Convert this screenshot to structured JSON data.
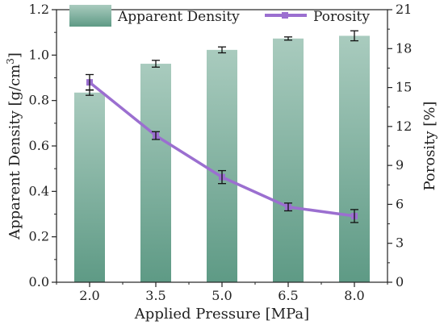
{
  "chart_data": {
    "type": "bar",
    "xlabel": "Applied Pressure [MPa]",
    "ylabel_left": "Apparent Density [g/cm³]",
    "ylabel_left_base": "Apparent Density [g/cm",
    "ylabel_left_sup": "3",
    "ylabel_left_close": "]",
    "ylabel_right": "Porosity [%]",
    "categories": [
      "2.0",
      "3.5",
      "5.0",
      "6.5",
      "8.0"
    ],
    "ylim_left": [
      0,
      1.2
    ],
    "yticks_left": [
      "0.0",
      "0.2",
      "0.4",
      "0.6",
      "0.8",
      "1.0",
      "1.2"
    ],
    "ylim_right": [
      0,
      21
    ],
    "yticks_right": [
      "0",
      "3",
      "6",
      "9",
      "12",
      "15",
      "18",
      "21"
    ],
    "series": [
      {
        "name": "Apparent Density",
        "type": "bar",
        "axis": "left",
        "color_top": "#a9cbbe",
        "color_bottom": "#5e9a85",
        "values": [
          0.835,
          0.962,
          1.023,
          1.073,
          1.085
        ],
        "errors": [
          0.012,
          0.015,
          0.013,
          0.007,
          0.022
        ]
      },
      {
        "name": "Porosity",
        "type": "line",
        "axis": "right",
        "color": "#9b6fd0",
        "values": [
          15.4,
          11.3,
          8.1,
          5.8,
          5.1
        ],
        "errors": [
          0.6,
          0.3,
          0.5,
          0.3,
          0.5
        ]
      }
    ],
    "legend_position": "top",
    "grid": false
  }
}
